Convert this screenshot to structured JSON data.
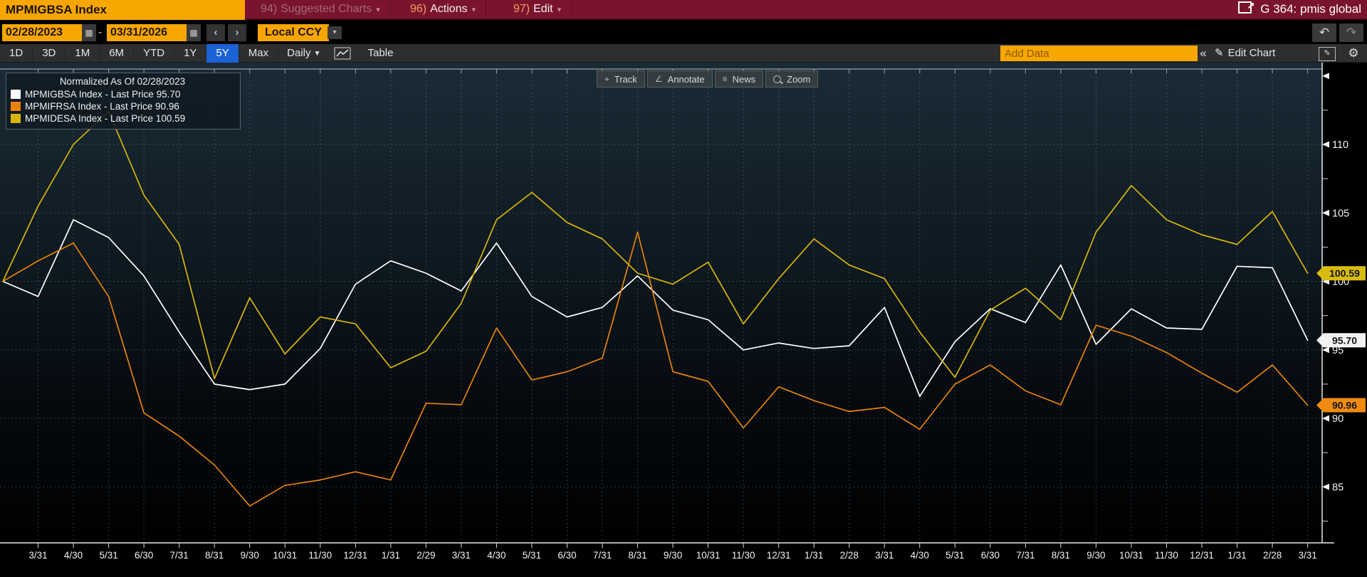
{
  "titlebar": {
    "ticker": "MPMIGBSA Index",
    "menu_items": [
      {
        "num": "94)",
        "label": "Suggested Charts",
        "caret": "▾",
        "disabled": true
      },
      {
        "num": "96)",
        "label": "Actions",
        "caret": "▾",
        "disabled": false
      },
      {
        "num": "97)",
        "label": "Edit",
        "caret": "▾",
        "disabled": false
      }
    ],
    "page_tag": "G 364: pmis global"
  },
  "datebar": {
    "start_date": "02/28/2023",
    "separator": "-",
    "end_date": "03/31/2026",
    "prev_arrow": "‹",
    "next_arrow": "›",
    "ccy": "Local CCY",
    "ccy_caret": "▾",
    "undo_icon": "↶",
    "redo_icon": "↷"
  },
  "toolbar": {
    "periods": [
      "1D",
      "3D",
      "1M",
      "6M",
      "YTD",
      "1Y",
      "5Y",
      "Max"
    ],
    "selected_period": "5Y",
    "frequency": "Daily",
    "frequency_caret": "▼",
    "table_label": "Table",
    "add_data_placeholder": "Add Data",
    "collapse_label": "«",
    "edit_chart_label": "Edit Chart",
    "pencil_icon": "✎",
    "gear_icon": "⚙"
  },
  "legend": {
    "last_price_label": "Last Price",
    "separator": "-"
  },
  "overlay_buttons": [
    {
      "label": "Track",
      "icon": "⌖",
      "icon_name": "track-crosshair-icon"
    },
    {
      "label": "Annotate",
      "icon": "∠",
      "icon_name": "annotate-pencil-icon"
    },
    {
      "label": "News",
      "icon": "≡",
      "icon_name": "news-lines-icon"
    },
    {
      "label": "Zoom",
      "icon": "",
      "icon_name": "zoom-magnifier-icon"
    }
  ],
  "colors": {
    "accent_amber": "#f7a600",
    "banner_red": "#7a142c",
    "selected_blue": "#1a62d6",
    "white_series": "#ffffff",
    "orange_series": "#e8820a",
    "yellow_series": "#d9b40b"
  },
  "chart_data": {
    "type": "line",
    "title": "Normalized As Of 02/28/2023",
    "grid": "dotted",
    "legend_position": "top-left",
    "x_start": "2/28",
    "x_tick_labels": [
      "3/31",
      "4/30",
      "5/31",
      "6/30",
      "7/31",
      "8/31",
      "9/30",
      "10/31",
      "11/30",
      "12/31",
      "1/31",
      "2/29",
      "3/31",
      "4/30",
      "5/31",
      "6/30",
      "7/31",
      "8/31",
      "9/30",
      "10/31",
      "11/30",
      "12/31",
      "1/31",
      "2/28",
      "3/31",
      "4/30",
      "5/31",
      "6/30",
      "7/31",
      "8/31",
      "9/30",
      "10/31",
      "11/30",
      "12/31",
      "1/31",
      "2/28",
      "3/31"
    ],
    "ylim": [
      81,
      116
    ],
    "y_major_ticks": [
      115,
      110,
      105,
      100,
      95,
      90,
      85
    ],
    "y_tick_labels": [
      "110",
      "105",
      "100",
      "95",
      "90",
      "85"
    ],
    "y_minor_ticks": [
      112.5,
      107.5,
      102.5,
      97.5,
      92.5,
      87.5,
      82.5
    ],
    "series": [
      {
        "name": "MPMIGBSA Index",
        "color": "#ffffff",
        "last_price": "95.70",
        "badge_bg": "#f2f2f2",
        "values": [
          100,
          98.9,
          104.5,
          103.2,
          100.4,
          96.3,
          92.5,
          92.1,
          92.5,
          95.1,
          99.8,
          101.5,
          100.6,
          99.3,
          102.8,
          98.9,
          97.4,
          98.1,
          100.4,
          97.9,
          97.2,
          95.0,
          95.5,
          95.1,
          95.3,
          98.1,
          91.6,
          95.6,
          98.0,
          97.0,
          101.2,
          95.4,
          98.0,
          96.6,
          96.5,
          101.1,
          101.0,
          95.7
        ]
      },
      {
        "name": "MPMIFRSA Index",
        "color": "#e8820a",
        "last_price": "90.96",
        "badge_bg": "#ef8c10",
        "values": [
          100,
          101.5,
          102.8,
          98.9,
          90.4,
          88.7,
          86.6,
          83.6,
          85.1,
          85.5,
          86.1,
          85.5,
          91.1,
          91.0,
          96.6,
          92.8,
          93.4,
          94.4,
          103.6,
          93.4,
          92.7,
          89.3,
          92.3,
          91.3,
          90.5,
          90.8,
          89.2,
          92.5,
          93.9,
          92.0,
          91.0,
          96.8,
          96.0,
          94.8,
          93.3,
          91.9,
          93.9,
          90.96
        ]
      },
      {
        "name": "MPMIDESA Index",
        "color": "#d9b40b",
        "last_price": "100.59",
        "badge_bg": "#d7bb0e",
        "values": [
          100,
          105.5,
          110.0,
          112.4,
          106.3,
          102.7,
          92.9,
          98.8,
          94.7,
          97.4,
          96.9,
          93.7,
          94.9,
          98.4,
          104.5,
          106.5,
          104.3,
          103.1,
          100.6,
          99.8,
          101.4,
          96.9,
          100.2,
          103.1,
          101.2,
          100.2,
          96.3,
          93.0,
          97.9,
          99.5,
          97.2,
          103.6,
          107.0,
          104.5,
          103.4,
          102.7,
          105.1,
          100.59
        ]
      }
    ]
  }
}
